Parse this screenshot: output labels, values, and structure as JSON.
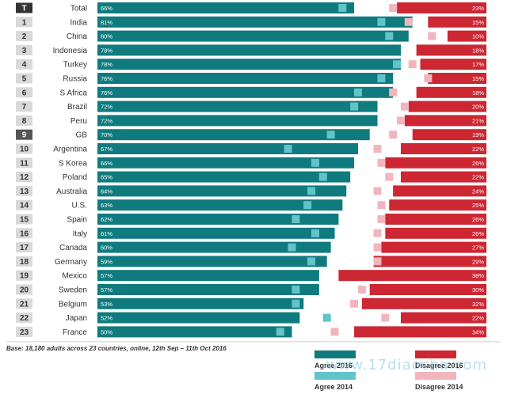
{
  "chart_data": {
    "type": "bar",
    "header_rank": "T",
    "categories": [
      "Total",
      "India",
      "China",
      "Indonesia",
      "Turkey",
      "Russia",
      "S Africa",
      "Brazil",
      "Peru",
      "GB",
      "Argentina",
      "S Korea",
      "Poland",
      "Australia",
      "U.S.",
      "Spain",
      "Italy",
      "Canada",
      "Germany",
      "Mexico",
      "Sweden",
      "Belgium",
      "Japan",
      "France"
    ],
    "ranks": [
      "T",
      "1",
      "2",
      "3",
      "4",
      "5",
      "6",
      "7",
      "8",
      "9",
      "10",
      "11",
      "12",
      "13",
      "14",
      "15",
      "16",
      "17",
      "18",
      "19",
      "20",
      "21",
      "22",
      "23"
    ],
    "series": [
      {
        "name": "Agree 2016",
        "color": "#0f7b7e",
        "values": [
          66,
          81,
          80,
          78,
          78,
          76,
          76,
          72,
          72,
          70,
          67,
          66,
          65,
          64,
          63,
          62,
          61,
          60,
          59,
          57,
          57,
          53,
          52,
          50
        ],
        "labels": [
          "66%",
          "81%",
          "80%",
          "78%",
          "78%",
          "76%",
          "76%",
          "72%",
          "72%",
          "70%",
          "67%",
          "66%",
          "65%",
          "64%",
          "63%",
          "62%",
          "61%",
          "60%",
          "59%",
          "57%",
          "57%",
          "53%",
          "52%",
          "50%"
        ]
      },
      {
        "name": "Disagree 2016",
        "color": "#cc2732",
        "values": [
          23,
          15,
          10,
          18,
          17,
          15,
          18,
          20,
          21,
          19,
          22,
          26,
          22,
          24,
          25,
          26,
          26,
          27,
          29,
          38,
          30,
          32,
          22,
          34
        ],
        "labels": [
          "23%",
          "15%",
          "10%",
          "18%",
          "17%",
          "15%",
          "18%",
          "20%",
          "21%",
          "19%",
          "22%",
          "26%",
          "22%",
          "24%",
          "25%",
          "26%",
          "26%",
          "27%",
          "29%",
          "38%",
          "30%",
          "32%",
          "22%",
          "34%"
        ]
      },
      {
        "name": "Agree 2014",
        "color": "#62c3c9",
        "values": [
          63,
          73,
          75,
          null,
          77,
          73,
          67,
          66,
          null,
          60,
          49,
          56,
          58,
          55,
          54,
          51,
          56,
          50,
          55,
          null,
          51,
          51,
          59,
          47
        ]
      },
      {
        "name": "Disagree 2014",
        "color": "#f2b5bd",
        "values": [
          24,
          20,
          14,
          null,
          19,
          15,
          24,
          21,
          22,
          24,
          28,
          27,
          25,
          28,
          27,
          27,
          28,
          28,
          28,
          null,
          32,
          34,
          26,
          39
        ]
      }
    ],
    "rank_highlight": {
      "T": "#333333",
      "9": "#555555"
    },
    "base_note": "Base: 18,180 adults across 23 countries, online, 12th Sep – 11th Oct 2016",
    "legend_position": "bottom-right",
    "watermark": "www.17diaocha.com"
  }
}
